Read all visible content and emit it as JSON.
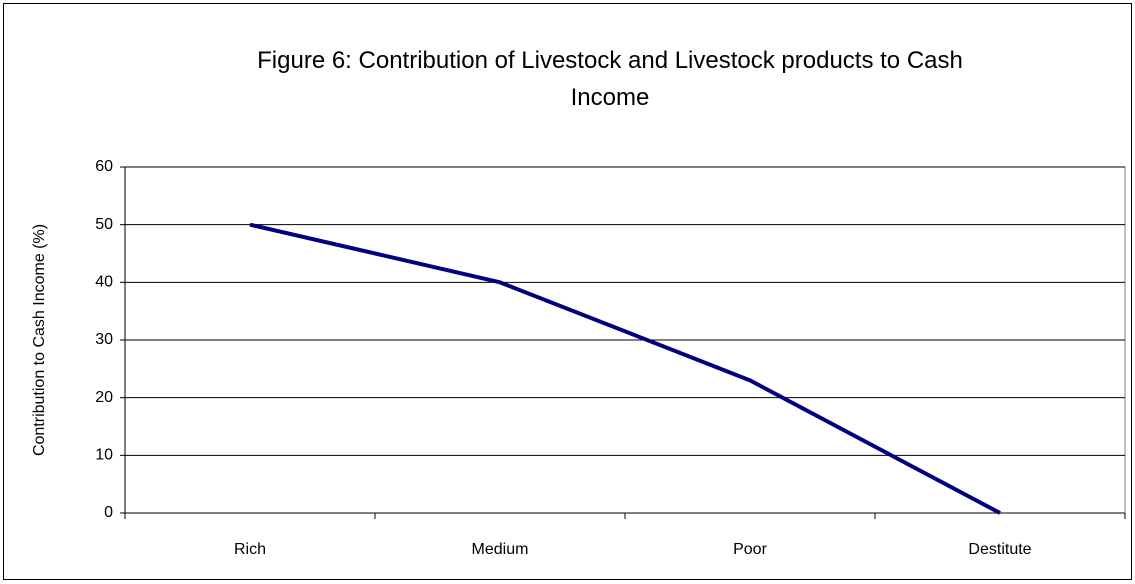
{
  "chart_data": {
    "type": "line",
    "title": "Figure 6: Contribution of Livestock and Livestock products to Cash Income",
    "y_label": "Contribution  to Cash Income (%)",
    "categories": [
      "Rich",
      "Medium",
      "Poor",
      "Destitute"
    ],
    "series": [
      {
        "name": "Contribution",
        "color": "#000080",
        "values": [
          50,
          40,
          23,
          0
        ]
      }
    ],
    "ylim": [
      0,
      60
    ],
    "yticks": [
      0,
      10,
      20,
      30,
      40,
      50,
      60
    ],
    "grid": true
  }
}
